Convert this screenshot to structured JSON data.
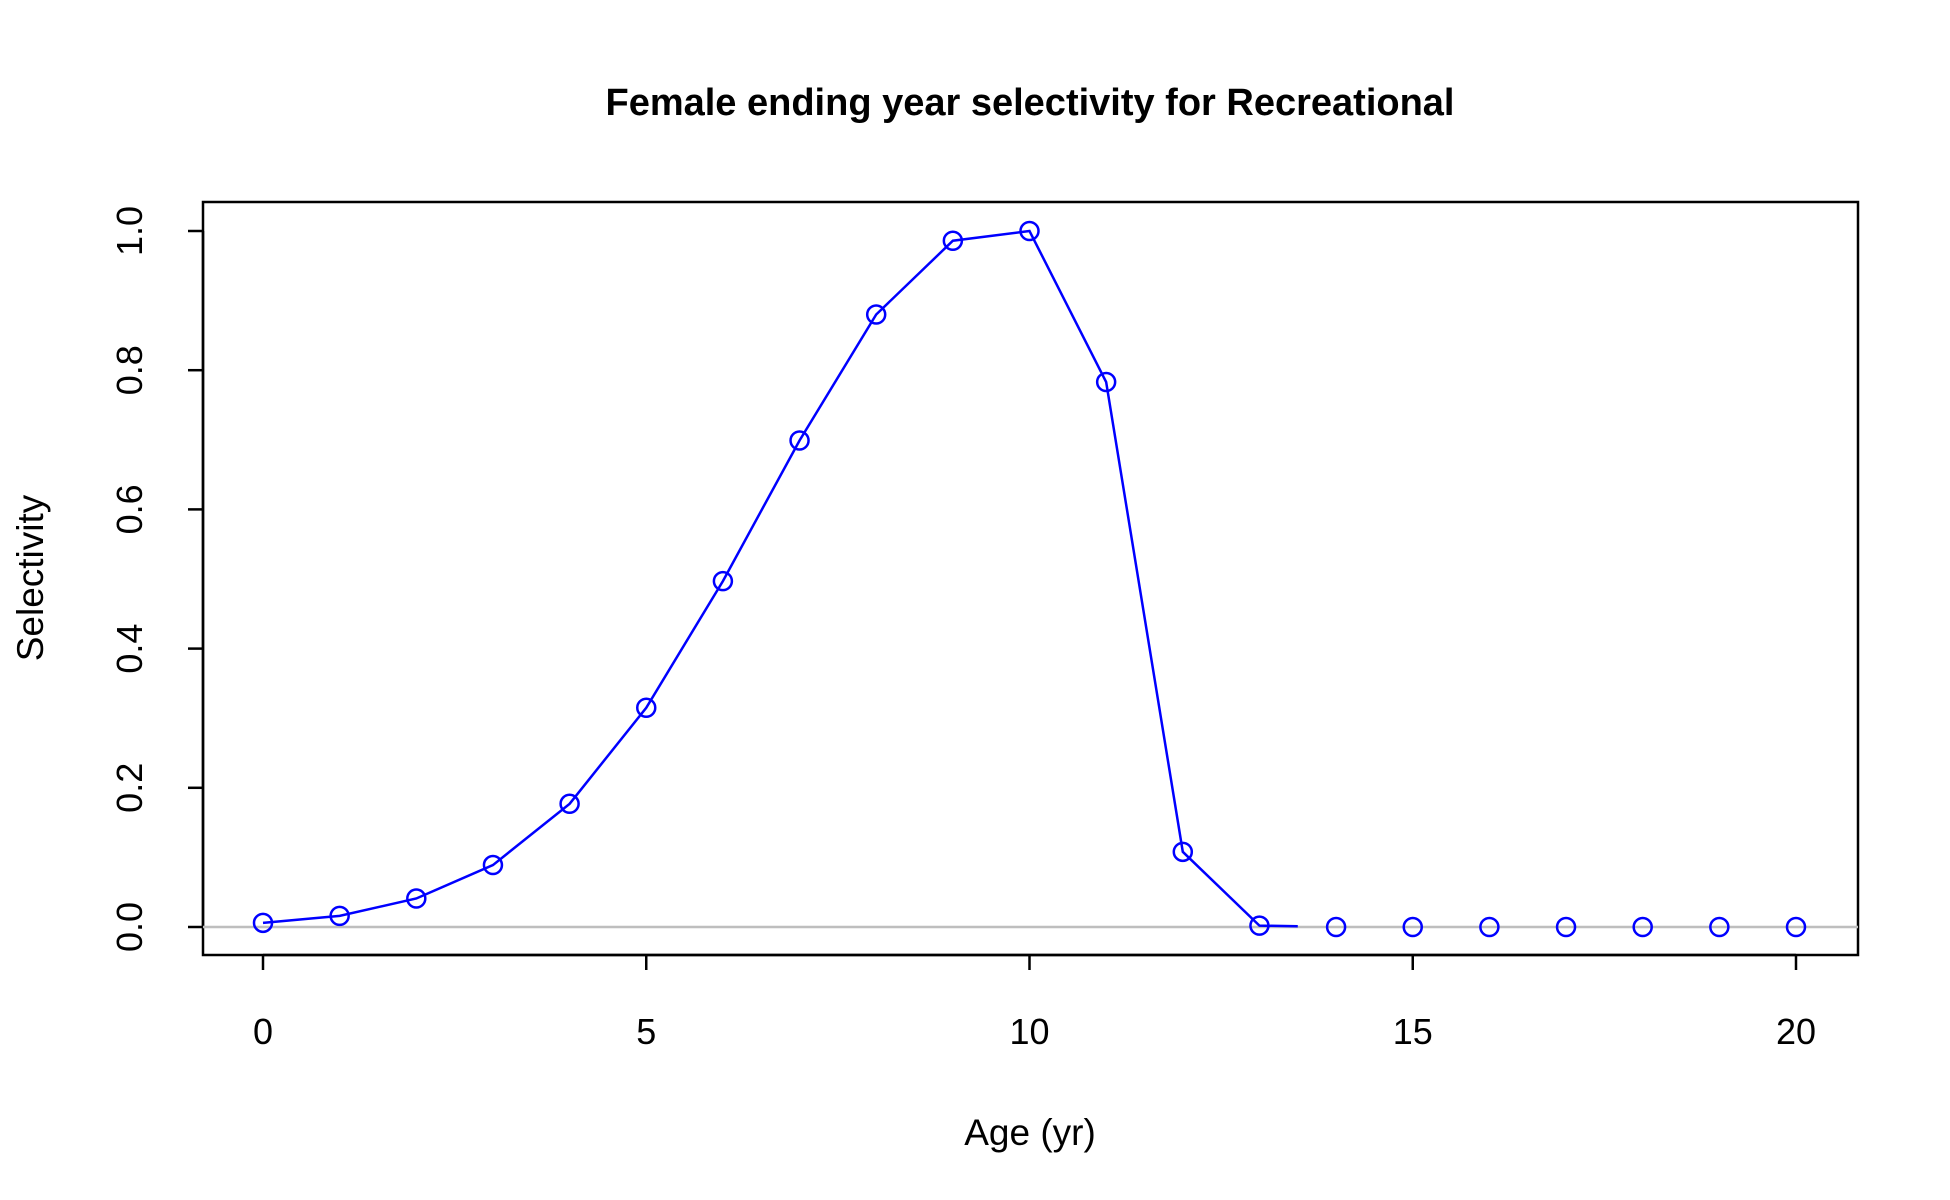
{
  "chart_data": {
    "type": "line",
    "title": "Female ending year selectivity for Recreational",
    "xlabel": "Age (yr)",
    "ylabel": "Selectivity",
    "xlim": [
      0,
      20
    ],
    "ylim": [
      0,
      1
    ],
    "x_ticks": [
      0,
      5,
      10,
      15,
      20
    ],
    "y_ticks": [
      0.0,
      0.2,
      0.4,
      0.6,
      0.8,
      1.0
    ],
    "x_tick_labels": [
      "0",
      "5",
      "10",
      "15",
      "20"
    ],
    "y_tick_labels": [
      "0.0",
      "0.2",
      "0.4",
      "0.6",
      "0.8",
      "1.0"
    ],
    "reference_line_y": 0,
    "grid": false,
    "legend": "none",
    "colors": {
      "series": "#0000ff",
      "reference": "#bebebe",
      "axis": "#000000"
    },
    "series": [
      {
        "x": [
          0,
          1,
          2,
          3,
          4,
          5,
          6,
          7,
          8,
          9,
          10,
          11,
          12,
          13,
          14,
          15,
          16,
          17,
          18,
          19,
          20
        ],
        "values": [
          0.006,
          0.016,
          0.041,
          0.089,
          0.177,
          0.315,
          0.497,
          0.699,
          0.88,
          0.986,
          1.0,
          0.783,
          0.108,
          0.002,
          0.0,
          0.0,
          0.0,
          0.0,
          0.0,
          0.0,
          0.0
        ],
        "line_end_x": 13.5
      }
    ]
  }
}
